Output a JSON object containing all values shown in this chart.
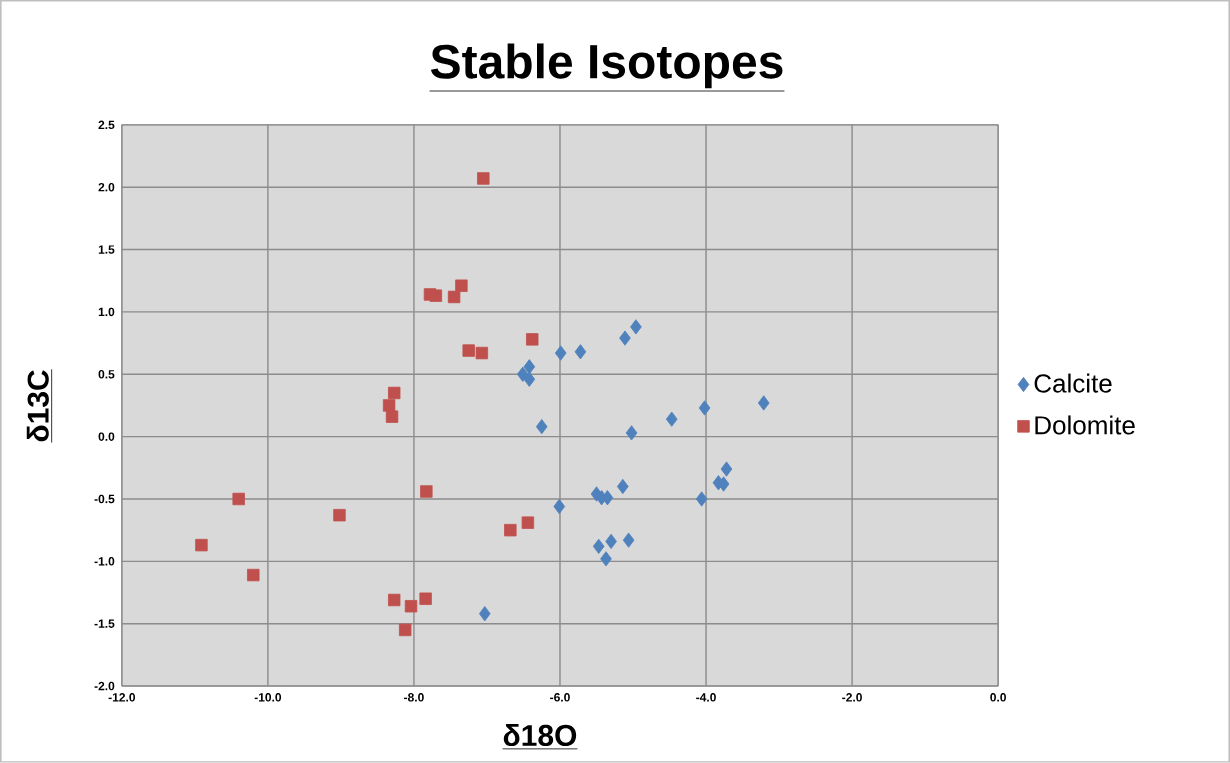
{
  "chart_data": {
    "type": "scatter",
    "title": "Stable Isotopes",
    "xlabel": "δ18O",
    "ylabel": "δ13C",
    "xlim": [
      -12,
      0
    ],
    "ylim": [
      -2,
      2.5
    ],
    "xticks": [
      {
        "value": -12,
        "label": "-12.0"
      },
      {
        "value": -10,
        "label": "-10.0"
      },
      {
        "value": -8,
        "label": "-8.0"
      },
      {
        "value": -6,
        "label": "-6.0"
      },
      {
        "value": -4,
        "label": "-4.0"
      },
      {
        "value": -2,
        "label": "-2.0"
      },
      {
        "value": 0,
        "label": "0.0"
      }
    ],
    "yticks": [
      {
        "value": -2,
        "label": "-2.0"
      },
      {
        "value": -1.5,
        "label": "-1.5"
      },
      {
        "value": -1,
        "label": "-1.0"
      },
      {
        "value": -0.5,
        "label": "-0.5"
      },
      {
        "value": 0,
        "label": "0.0"
      },
      {
        "value": 0.5,
        "label": "0.5"
      },
      {
        "value": 1,
        "label": "1.0"
      },
      {
        "value": 1.5,
        "label": "1.5"
      },
      {
        "value": 2,
        "label": "2.0"
      },
      {
        "value": 2.5,
        "label": "2.5"
      }
    ],
    "grid": true,
    "legend": "right",
    "series": [
      {
        "name": "Calcite",
        "color": "#4f81bd",
        "marker": "diamond",
        "x": [
          -6.42,
          -6.51,
          -6.42,
          -6.25,
          -7.03,
          -5.99,
          -5.72,
          -5.11,
          -4.96,
          -4.02,
          -3.21,
          -4.47,
          -5.02,
          -3.72,
          -3.83,
          -3.76,
          -4.06,
          -5.14,
          -5.5,
          -5.43,
          -5.35,
          -6.01,
          -5.47,
          -5.3,
          -5.06,
          -5.37
        ],
        "values": [
          0.56,
          0.5,
          0.46,
          0.08,
          -1.42,
          0.67,
          0.68,
          0.79,
          0.88,
          0.23,
          0.27,
          0.14,
          0.03,
          -0.26,
          -0.37,
          -0.38,
          -0.5,
          -0.4,
          -0.46,
          -0.49,
          -0.49,
          -0.56,
          -0.88,
          -0.84,
          -0.83,
          -0.98
        ]
      },
      {
        "name": "Dolomite",
        "color": "#c0504d",
        "marker": "square",
        "x": [
          -7.05,
          -7.78,
          -7.7,
          -7.45,
          -7.35,
          -6.38,
          -7.25,
          -7.07,
          -8.27,
          -8.34,
          -8.3,
          -10.4,
          -9.02,
          -7.83,
          -6.68,
          -6.44,
          -10.91,
          -10.2,
          -8.27,
          -8.04,
          -7.84,
          -8.12
        ],
        "values": [
          2.07,
          1.14,
          1.13,
          1.12,
          1.21,
          0.78,
          0.69,
          0.67,
          0.35,
          0.25,
          0.16,
          -0.5,
          -0.63,
          -0.44,
          -0.75,
          -0.69,
          -0.87,
          -1.11,
          -1.31,
          -1.36,
          -1.3,
          -1.55
        ]
      }
    ]
  }
}
